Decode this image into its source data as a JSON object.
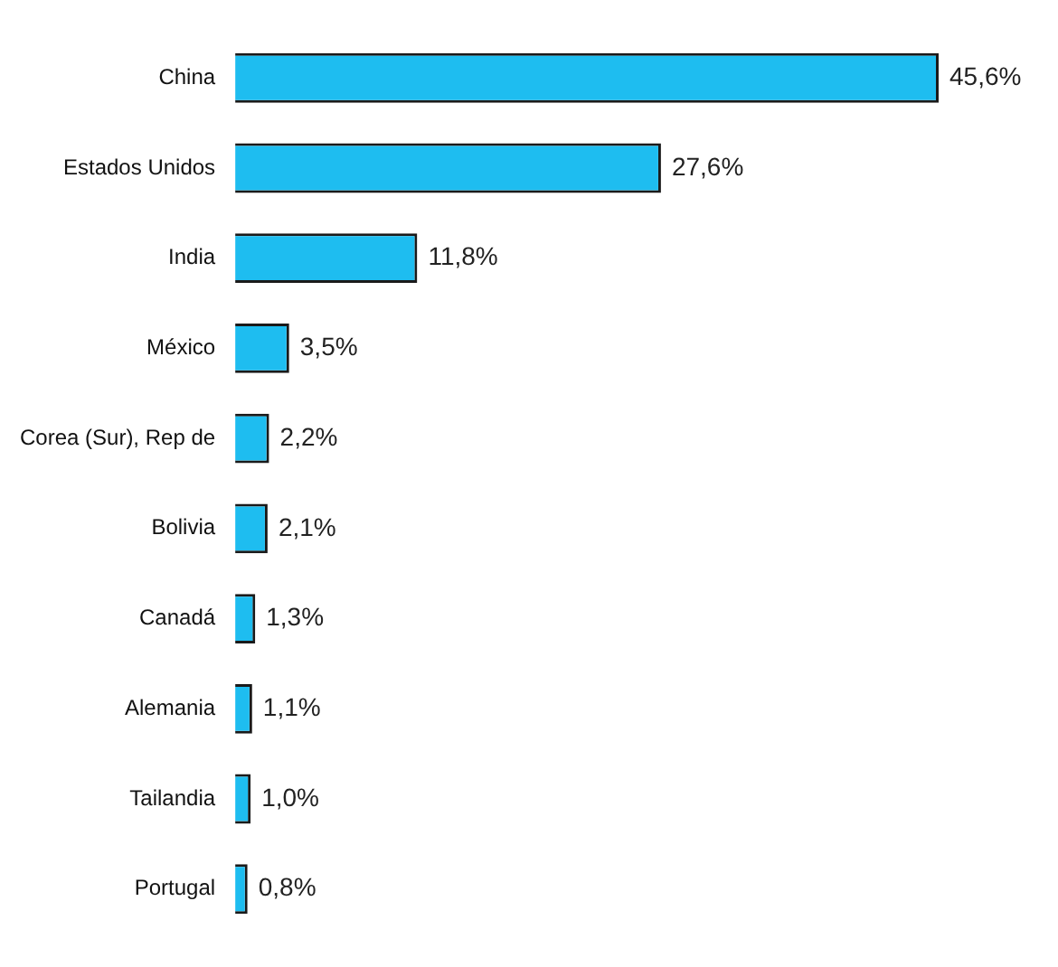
{
  "chart_data": {
    "type": "bar",
    "orientation": "horizontal",
    "categories": [
      "China",
      "Estados Unidos",
      "India",
      "México",
      "Corea (Sur), Rep de",
      "Bolivia",
      "Canadá",
      "Alemania",
      "Tailandia",
      "Portugal"
    ],
    "values": [
      45.6,
      27.6,
      11.8,
      3.5,
      2.2,
      2.1,
      1.3,
      1.1,
      1.0,
      0.8
    ],
    "value_labels": [
      "45,6%",
      "27,6%",
      "11,8%",
      "3,5%",
      "2,2%",
      "2,1%",
      "1,3%",
      "1,1%",
      "1,0%",
      "0,8%"
    ],
    "color": "#1ebdf0",
    "grid": false,
    "legend": false
  }
}
